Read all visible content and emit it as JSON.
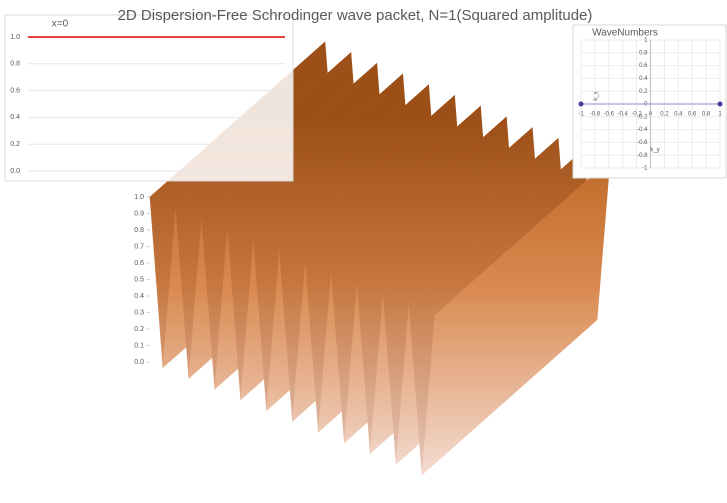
{
  "chart_data": [
    {
      "type": "surface",
      "title": "2D Dispersion-Free Schrodinger wave packet, N=1(Squared amplitude)",
      "values": [
        1,
        0,
        1,
        0,
        1,
        0,
        1,
        0,
        1,
        0,
        1,
        0,
        1,
        0,
        1,
        0,
        1,
        0,
        1,
        0,
        1,
        0,
        1
      ],
      "zlim": [
        0,
        1
      ],
      "zticks": [
        {
          "value": 0,
          "label": "0.0"
        },
        {
          "value": 0.1,
          "label": "0.1"
        },
        {
          "value": 0.2,
          "label": "0.2"
        },
        {
          "value": 0.3,
          "label": "0.3"
        },
        {
          "value": 0.4,
          "label": "0.4"
        },
        {
          "value": 0.5,
          "label": "0.5"
        },
        {
          "value": 0.6,
          "label": "0.6"
        },
        {
          "value": 0.7,
          "label": "0.7"
        },
        {
          "value": 0.8,
          "label": "0.8"
        },
        {
          "value": 0.9,
          "label": "0.9"
        },
        {
          "value": 1,
          "label": "1.0"
        }
      ],
      "color": "#c0651e"
    },
    {
      "type": "line",
      "title": "x=0",
      "values": [
        1,
        1
      ],
      "ylim": [
        0,
        1
      ],
      "yticks": [
        {
          "value": 0,
          "label": "0.0"
        },
        {
          "value": 0.2,
          "label": "0.2"
        },
        {
          "value": 0.4,
          "label": "0.4"
        },
        {
          "value": 0.6,
          "label": "0.6"
        },
        {
          "value": 0.8,
          "label": "0.8"
        },
        {
          "value": 1,
          "label": "1.0"
        }
      ],
      "color": "#e00000",
      "grid": true
    },
    {
      "type": "scatter",
      "title": "WaveNumbers",
      "x": [
        -1,
        1
      ],
      "values": [
        0,
        0
      ],
      "xlim": [
        -1,
        1
      ],
      "ylim": [
        -1,
        1
      ],
      "xticks": [
        -1,
        -0.8,
        -0.6,
        -0.4,
        -0.2,
        0,
        0.2,
        0.4,
        0.6,
        0.8,
        1
      ],
      "yticks": [
        1,
        0.8,
        0.6,
        0.4,
        0.2,
        0,
        -0.2,
        -0.4,
        -0.6,
        -0.8,
        -1
      ],
      "xlabel": "k_y",
      "ylabel": "k_x",
      "color": "#4b3a9e",
      "grid": true
    }
  ]
}
